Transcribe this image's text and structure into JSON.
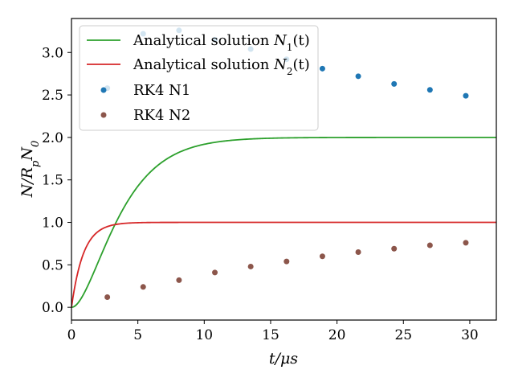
{
  "chart_data": {
    "type": "line",
    "xlabel": "t/μs",
    "ylabel": "N/R_pN_0",
    "xlim": [
      0,
      32
    ],
    "ylim": [
      -0.15,
      3.4
    ],
    "xticks": [
      "0",
      "5",
      "10",
      "15",
      "20",
      "25",
      "30"
    ],
    "yticks": [
      "0.0",
      "0.5",
      "1.0",
      "1.5",
      "2.0",
      "2.5",
      "3.0"
    ],
    "grid": false,
    "legend_position": "upper-left",
    "series": [
      {
        "name": "Analytical solution N_1(t)",
        "kind": "line",
        "color": "#2ca02c",
        "model": "2*(1 - exp(-t/2) - (t/2)*exp(-t/2))"
      },
      {
        "name": "Analytical solution N_2(t)",
        "kind": "line",
        "color": "#d62728",
        "model": "1 - exp(-t/0.9)"
      },
      {
        "name": "RK4 N1",
        "kind": "scatter",
        "color": "#1f77b4",
        "x": [
          2.7,
          5.4,
          8.1,
          10.8,
          13.5,
          16.2,
          18.9,
          21.6,
          24.3,
          27.0,
          29.7
        ],
        "y": [
          2.58,
          3.22,
          3.26,
          3.15,
          3.04,
          2.92,
          2.81,
          2.72,
          2.63,
          2.56,
          2.49
        ]
      },
      {
        "name": "RK4 N2",
        "kind": "scatter",
        "color": "#8c564b",
        "x": [
          2.7,
          5.4,
          8.1,
          10.8,
          13.5,
          16.2,
          18.9,
          21.6,
          24.3,
          27.0,
          29.7
        ],
        "y": [
          0.12,
          0.24,
          0.32,
          0.41,
          0.48,
          0.54,
          0.6,
          0.65,
          0.69,
          0.73,
          0.76
        ]
      }
    ],
    "legend": {
      "n1_prefix": "Analytical solution ",
      "n1_math": "N",
      "n1_sub": "1",
      "n1_suffix": "(t)",
      "n2_prefix": "Analytical solution ",
      "n2_math": "N",
      "n2_sub": "2",
      "n2_suffix": "(t)",
      "rk4_n1": "RK4 N1",
      "rk4_n2": "RK4 N2"
    }
  }
}
